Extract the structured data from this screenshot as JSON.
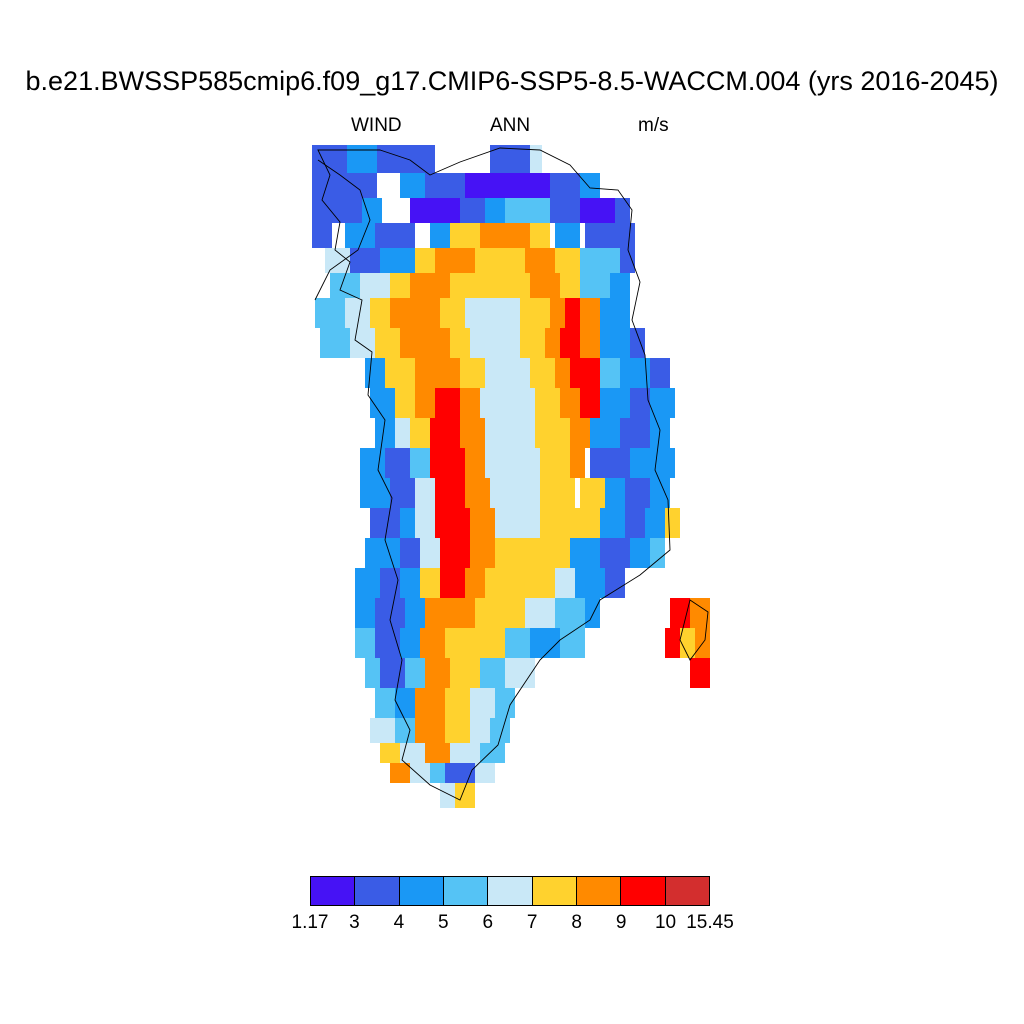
{
  "title": "b.e21.BWSSP585cmip6.f09_g17.CMIP6-SSP5-8.5-WACCM.004 (yrs 2016-2045)",
  "subtitle": {
    "variable": "WIND",
    "season": "ANN",
    "units": "m/s"
  },
  "map": {
    "region": "Greenland",
    "projection": "polar stereographic",
    "coastlines": true
  },
  "colorbar": {
    "colors": [
      "#4612f5",
      "#3a5ce6",
      "#1a98f5",
      "#55c3f5",
      "#c9e8f7",
      "#ffd22e",
      "#ff8a00",
      "#ff0000",
      "#d32e2e"
    ],
    "labels": [
      "1.17",
      "3",
      "4",
      "5",
      "6",
      "7",
      "8",
      "9",
      "10",
      "15.45"
    ]
  }
}
